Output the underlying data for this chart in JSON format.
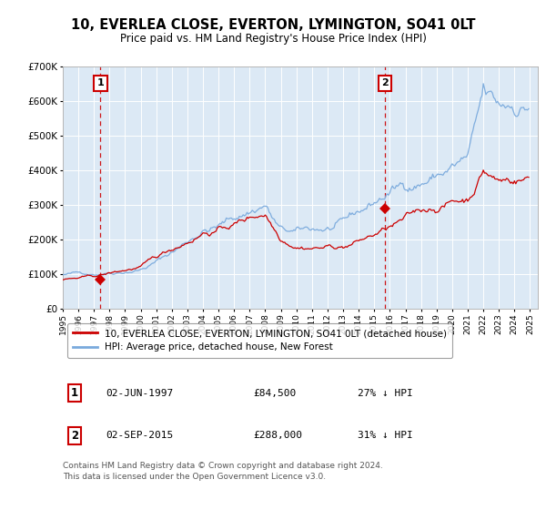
{
  "title": "10, EVERLEA CLOSE, EVERTON, LYMINGTON, SO41 0LT",
  "subtitle": "Price paid vs. HM Land Registry's House Price Index (HPI)",
  "bg_color": "#dce9f5",
  "ylim": [
    0,
    700000
  ],
  "yticks": [
    0,
    100000,
    200000,
    300000,
    400000,
    500000,
    600000,
    700000
  ],
  "ytick_labels": [
    "£0",
    "£100K",
    "£200K",
    "£300K",
    "£400K",
    "£500K",
    "£600K",
    "£700K"
  ],
  "xmin": 1995.0,
  "xmax": 2025.5,
  "xticks": [
    1995,
    1996,
    1997,
    1998,
    1999,
    2000,
    2001,
    2002,
    2003,
    2004,
    2005,
    2006,
    2007,
    2008,
    2009,
    2010,
    2011,
    2012,
    2013,
    2014,
    2015,
    2016,
    2017,
    2018,
    2019,
    2020,
    2021,
    2022,
    2023,
    2024,
    2025
  ],
  "sale1_x": 1997.42,
  "sale1_y": 84500,
  "sale2_x": 2015.67,
  "sale2_y": 288000,
  "hpi_color": "#7aaadd",
  "price_color": "#cc0000",
  "legend_label1": "10, EVERLEA CLOSE, EVERTON, LYMINGTON, SO41 0LT (detached house)",
  "legend_label2": "HPI: Average price, detached house, New Forest",
  "table_entries": [
    {
      "num": "1",
      "date": "02-JUN-1997",
      "price": "£84,500",
      "hpi": "27% ↓ HPI"
    },
    {
      "num": "2",
      "date": "02-SEP-2015",
      "price": "£288,000",
      "hpi": "31% ↓ HPI"
    }
  ],
  "footer": "Contains HM Land Registry data © Crown copyright and database right 2024.\nThis data is licensed under the Open Government Licence v3.0."
}
